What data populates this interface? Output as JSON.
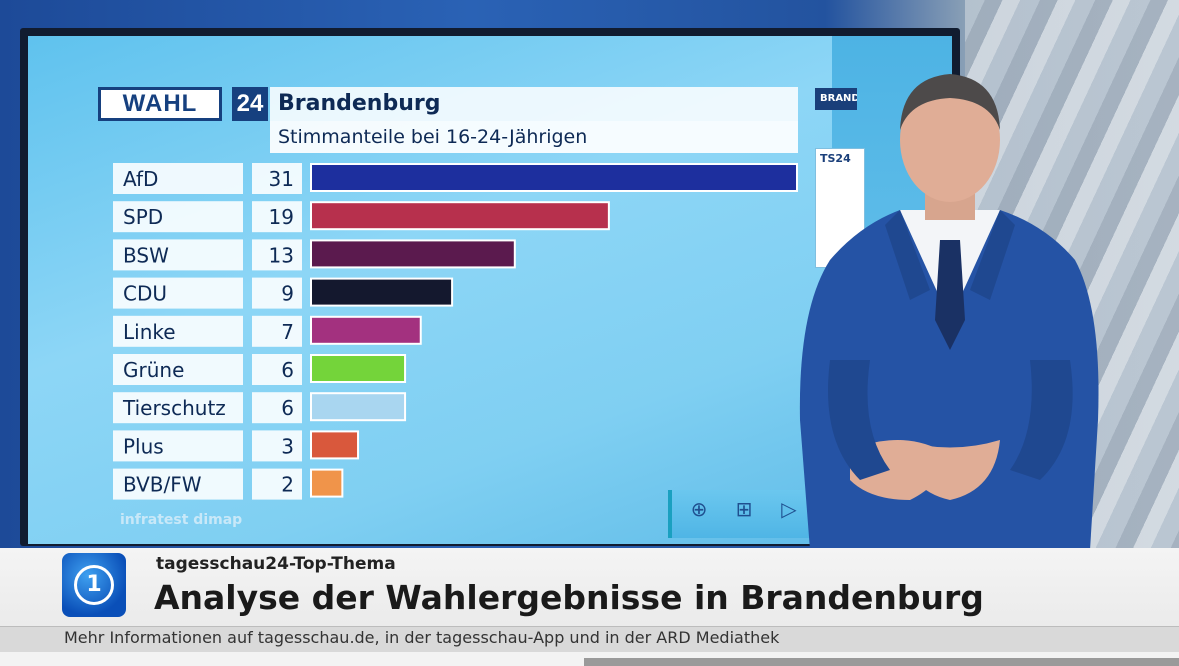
{
  "header": {
    "logo_text": "WAHL",
    "logo_number": "24",
    "title": "Brandenburg",
    "subtitle": "Stimmanteile bei 16-24-Jährigen"
  },
  "side_panel": {
    "label": "BRAND",
    "card_title": "TS24"
  },
  "chart_data": {
    "type": "bar",
    "orientation": "horizontal",
    "title": "Brandenburg",
    "subtitle": "Stimmanteile bei 16-24-Jährigen",
    "categories": [
      "AfD",
      "SPD",
      "BSW",
      "CDU",
      "Linke",
      "Grüne",
      "Tierschutz",
      "Plus",
      "BVB/FW"
    ],
    "values": [
      31,
      19,
      13,
      9,
      7,
      6,
      6,
      3,
      2
    ],
    "colors": [
      "#1d2f9e",
      "#b7304d",
      "#5b1a4e",
      "#14182e",
      "#a3317f",
      "#74d43a",
      "#a9d6f0",
      "#d9583c",
      "#f0944a"
    ],
    "source": "infratest dimap",
    "xlim": [
      0,
      31
    ]
  },
  "controls": {
    "zoom_in": "⊕",
    "expand": "⊞",
    "play": "▷"
  },
  "lower_third": {
    "kicker": "tagesschau24-Top-Thema",
    "headline": "Analyse der Wahlergebnisse in Brandenburg",
    "info": "Mehr Informationen auf tagesschau.de, in der tagesschau-App und in der ARD Mediathek",
    "logo_glyph": "1"
  }
}
